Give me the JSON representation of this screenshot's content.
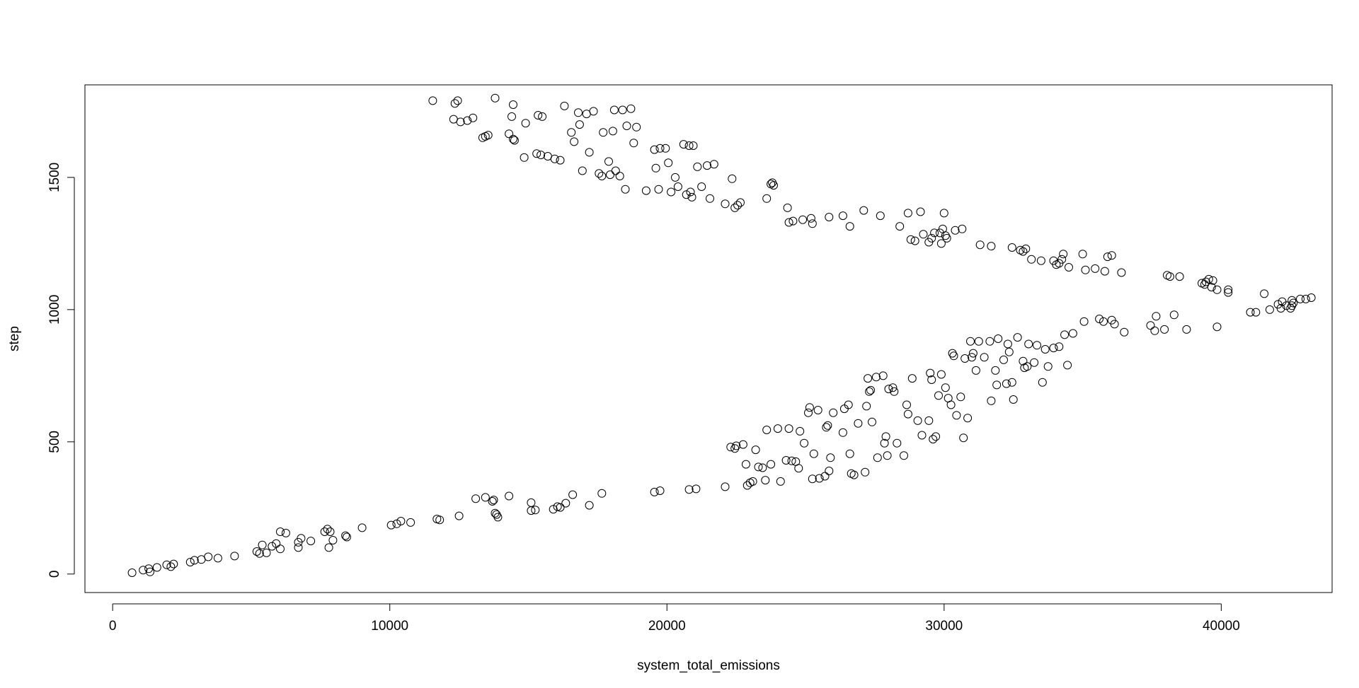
{
  "chart_data": {
    "type": "scatter",
    "title": "",
    "xlabel": "system_total_emissions",
    "ylabel": "step",
    "xlim": [
      -1000,
      44000
    ],
    "ylim": [
      -70,
      1850
    ],
    "x_ticks": [
      0,
      10000,
      20000,
      30000,
      40000
    ],
    "x_tick_labels": [
      "0",
      "10000",
      "20000",
      "30000",
      "40000"
    ],
    "y_ticks": [
      0,
      500,
      1000,
      1500
    ],
    "y_tick_labels": [
      "0",
      "500",
      "1000",
      "1500"
    ],
    "grid": false,
    "legend": "none",
    "marker": "open-circle",
    "points": [
      [
        700,
        5
      ],
      [
        1100,
        15
      ],
      [
        1300,
        20
      ],
      [
        1350,
        8
      ],
      [
        1600,
        25
      ],
      [
        1950,
        35
      ],
      [
        2100,
        28
      ],
      [
        2200,
        38
      ],
      [
        2800,
        45
      ],
      [
        2950,
        52
      ],
      [
        3200,
        55
      ],
      [
        3450,
        65
      ],
      [
        3800,
        60
      ],
      [
        4400,
        68
      ],
      [
        5200,
        85
      ],
      [
        5300,
        78
      ],
      [
        5400,
        110
      ],
      [
        5550,
        80
      ],
      [
        5750,
        105
      ],
      [
        5900,
        115
      ],
      [
        6050,
        95
      ],
      [
        6050,
        160
      ],
      [
        6250,
        155
      ],
      [
        6700,
        100
      ],
      [
        6700,
        120
      ],
      [
        6800,
        135
      ],
      [
        7150,
        125
      ],
      [
        7650,
        160
      ],
      [
        7750,
        170
      ],
      [
        7800,
        100
      ],
      [
        7850,
        160
      ],
      [
        7950,
        128
      ],
      [
        8400,
        145
      ],
      [
        8450,
        140
      ],
      [
        9000,
        175
      ],
      [
        10050,
        185
      ],
      [
        10250,
        190
      ],
      [
        10400,
        200
      ],
      [
        10750,
        195
      ],
      [
        11700,
        208
      ],
      [
        11800,
        205
      ],
      [
        12500,
        220
      ],
      [
        13100,
        285
      ],
      [
        13450,
        290
      ],
      [
        13700,
        275
      ],
      [
        13750,
        280
      ],
      [
        13800,
        230
      ],
      [
        13850,
        225
      ],
      [
        13900,
        215
      ],
      [
        14300,
        295
      ],
      [
        15100,
        270
      ],
      [
        15100,
        240
      ],
      [
        15250,
        242
      ],
      [
        15900,
        245
      ],
      [
        16050,
        255
      ],
      [
        16150,
        252
      ],
      [
        16350,
        268
      ],
      [
        16600,
        300
      ],
      [
        17200,
        260
      ],
      [
        17650,
        305
      ],
      [
        19550,
        310
      ],
      [
        19750,
        315
      ],
      [
        20800,
        320
      ],
      [
        21050,
        322
      ],
      [
        22100,
        330
      ],
      [
        22300,
        480
      ],
      [
        22450,
        475
      ],
      [
        22500,
        485
      ],
      [
        22750,
        490
      ],
      [
        22850,
        415
      ],
      [
        22900,
        335
      ],
      [
        23000,
        345
      ],
      [
        23100,
        350
      ],
      [
        23200,
        470
      ],
      [
        23300,
        405
      ],
      [
        23450,
        402
      ],
      [
        23550,
        355
      ],
      [
        23600,
        545
      ],
      [
        23750,
        415
      ],
      [
        24000,
        550
      ],
      [
        24100,
        350
      ],
      [
        24300,
        430
      ],
      [
        24400,
        550
      ],
      [
        24500,
        428
      ],
      [
        24650,
        425
      ],
      [
        24750,
        400
      ],
      [
        24800,
        540
      ],
      [
        24950,
        495
      ],
      [
        25100,
        610
      ],
      [
        25150,
        630
      ],
      [
        25250,
        360
      ],
      [
        25300,
        455
      ],
      [
        25450,
        620
      ],
      [
        25500,
        362
      ],
      [
        25700,
        370
      ],
      [
        25750,
        555
      ],
      [
        25800,
        562
      ],
      [
        25850,
        390
      ],
      [
        25900,
        440
      ],
      [
        26000,
        610
      ],
      [
        26350,
        535
      ],
      [
        26400,
        625
      ],
      [
        26550,
        640
      ],
      [
        26600,
        455
      ],
      [
        26650,
        380
      ],
      [
        26750,
        375
      ],
      [
        26900,
        570
      ],
      [
        27150,
        385
      ],
      [
        27200,
        635
      ],
      [
        27250,
        740
      ],
      [
        27300,
        690
      ],
      [
        27400,
        575
      ],
      [
        27350,
        695
      ],
      [
        27550,
        745
      ],
      [
        27600,
        440
      ],
      [
        27800,
        750
      ],
      [
        27850,
        495
      ],
      [
        27900,
        520
      ],
      [
        27950,
        448
      ],
      [
        28000,
        700
      ],
      [
        28150,
        705
      ],
      [
        28200,
        690
      ],
      [
        28300,
        495
      ],
      [
        28550,
        448
      ],
      [
        28650,
        640
      ],
      [
        28700,
        605
      ],
      [
        28850,
        740
      ],
      [
        29050,
        580
      ],
      [
        29200,
        525
      ],
      [
        29450,
        580
      ],
      [
        29500,
        760
      ],
      [
        29550,
        735
      ],
      [
        29600,
        510
      ],
      [
        29700,
        520
      ],
      [
        29800,
        675
      ],
      [
        29900,
        755
      ],
      [
        30050,
        705
      ],
      [
        30150,
        665
      ],
      [
        30250,
        640
      ],
      [
        30300,
        835
      ],
      [
        30350,
        825
      ],
      [
        30450,
        600
      ],
      [
        30600,
        670
      ],
      [
        30700,
        515
      ],
      [
        30750,
        815
      ],
      [
        30850,
        590
      ],
      [
        30950,
        880
      ],
      [
        31000,
        820
      ],
      [
        31050,
        835
      ],
      [
        31150,
        770
      ],
      [
        31250,
        880
      ],
      [
        31450,
        820
      ],
      [
        31650,
        880
      ],
      [
        31700,
        655
      ],
      [
        31850,
        770
      ],
      [
        31900,
        715
      ],
      [
        31950,
        890
      ],
      [
        32150,
        810
      ],
      [
        32250,
        720
      ],
      [
        32300,
        870
      ],
      [
        32350,
        840
      ],
      [
        32450,
        725
      ],
      [
        32500,
        660
      ],
      [
        32650,
        895
      ],
      [
        32850,
        805
      ],
      [
        32900,
        780
      ],
      [
        33000,
        785
      ],
      [
        33050,
        870
      ],
      [
        33250,
        800
      ],
      [
        33350,
        865
      ],
      [
        33550,
        725
      ],
      [
        33650,
        850
      ],
      [
        33750,
        785
      ],
      [
        33950,
        855
      ],
      [
        34150,
        860
      ],
      [
        34350,
        905
      ],
      [
        34450,
        790
      ],
      [
        34650,
        910
      ],
      [
        35050,
        955
      ],
      [
        35600,
        965
      ],
      [
        35750,
        955
      ],
      [
        36050,
        960
      ],
      [
        36150,
        945
      ],
      [
        36500,
        915
      ],
      [
        37450,
        940
      ],
      [
        37600,
        920
      ],
      [
        37650,
        975
      ],
      [
        37950,
        925
      ],
      [
        38300,
        980
      ],
      [
        38750,
        925
      ],
      [
        39850,
        935
      ],
      [
        41050,
        990
      ],
      [
        41250,
        990
      ],
      [
        41750,
        1000
      ],
      [
        42200,
        1030
      ],
      [
        42350,
        1015
      ],
      [
        42500,
        1005
      ],
      [
        42550,
        1035
      ],
      [
        42600,
        1025
      ],
      [
        42850,
        1040
      ],
      [
        43050,
        1040
      ],
      [
        43250,
        1045
      ],
      [
        11550,
        1790
      ],
      [
        12300,
        1720
      ],
      [
        12350,
        1780
      ],
      [
        12450,
        1790
      ],
      [
        12550,
        1710
      ],
      [
        12800,
        1715
      ],
      [
        13000,
        1725
      ],
      [
        13350,
        1650
      ],
      [
        13450,
        1655
      ],
      [
        13550,
        1660
      ],
      [
        13800,
        1800
      ],
      [
        14300,
        1665
      ],
      [
        14400,
        1730
      ],
      [
        14450,
        1645
      ],
      [
        14500,
        1640
      ],
      [
        14450,
        1775
      ],
      [
        14850,
        1575
      ],
      [
        14900,
        1705
      ],
      [
        15300,
        1590
      ],
      [
        15350,
        1735
      ],
      [
        15450,
        1585
      ],
      [
        15500,
        1730
      ],
      [
        15700,
        1580
      ],
      [
        15950,
        1570
      ],
      [
        16150,
        1565
      ],
      [
        16300,
        1770
      ],
      [
        16550,
        1670
      ],
      [
        16650,
        1635
      ],
      [
        16800,
        1745
      ],
      [
        16850,
        1700
      ],
      [
        16950,
        1525
      ],
      [
        17100,
        1740
      ],
      [
        17200,
        1595
      ],
      [
        17350,
        1750
      ],
      [
        17550,
        1515
      ],
      [
        17650,
        1505
      ],
      [
        17700,
        1670
      ],
      [
        17900,
        1560
      ],
      [
        17950,
        1510
      ],
      [
        18050,
        1675
      ],
      [
        18100,
        1755
      ],
      [
        18150,
        1525
      ],
      [
        18300,
        1505
      ],
      [
        18400,
        1755
      ],
      [
        18500,
        1455
      ],
      [
        18550,
        1695
      ],
      [
        18700,
        1760
      ],
      [
        18800,
        1630
      ],
      [
        18900,
        1690
      ],
      [
        19250,
        1450
      ],
      [
        19550,
        1605
      ],
      [
        19600,
        1535
      ],
      [
        19700,
        1455
      ],
      [
        19750,
        1610
      ],
      [
        19950,
        1610
      ],
      [
        20050,
        1555
      ],
      [
        20150,
        1445
      ],
      [
        20300,
        1500
      ],
      [
        20400,
        1465
      ],
      [
        20600,
        1625
      ],
      [
        20700,
        1435
      ],
      [
        20800,
        1620
      ],
      [
        20850,
        1445
      ],
      [
        20900,
        1425
      ],
      [
        20950,
        1620
      ],
      [
        21100,
        1540
      ],
      [
        21250,
        1465
      ],
      [
        21450,
        1545
      ],
      [
        21550,
        1420
      ],
      [
        21700,
        1550
      ],
      [
        22100,
        1400
      ],
      [
        22350,
        1495
      ],
      [
        22450,
        1385
      ],
      [
        22550,
        1395
      ],
      [
        22650,
        1405
      ],
      [
        23600,
        1420
      ],
      [
        23750,
        1475
      ],
      [
        23800,
        1480
      ],
      [
        23850,
        1470
      ],
      [
        24350,
        1385
      ],
      [
        24400,
        1330
      ],
      [
        24550,
        1335
      ],
      [
        24900,
        1340
      ],
      [
        25200,
        1345
      ],
      [
        25250,
        1325
      ],
      [
        25850,
        1350
      ],
      [
        26350,
        1355
      ],
      [
        26600,
        1315
      ],
      [
        27100,
        1375
      ],
      [
        27700,
        1355
      ],
      [
        28400,
        1315
      ],
      [
        28700,
        1365
      ],
      [
        28800,
        1265
      ],
      [
        28950,
        1260
      ],
      [
        29150,
        1370
      ],
      [
        29250,
        1285
      ],
      [
        29450,
        1255
      ],
      [
        29550,
        1270
      ],
      [
        29650,
        1290
      ],
      [
        29850,
        1290
      ],
      [
        29900,
        1250
      ],
      [
        29950,
        1305
      ],
      [
        30000,
        1365
      ],
      [
        30050,
        1280
      ],
      [
        30100,
        1270
      ],
      [
        30400,
        1300
      ],
      [
        30650,
        1305
      ],
      [
        31300,
        1245
      ],
      [
        31700,
        1240
      ],
      [
        32450,
        1235
      ],
      [
        32750,
        1225
      ],
      [
        32850,
        1220
      ],
      [
        32950,
        1230
      ],
      [
        33150,
        1190
      ],
      [
        33500,
        1185
      ],
      [
        33950,
        1185
      ],
      [
        34050,
        1170
      ],
      [
        34150,
        1175
      ],
      [
        34250,
        1190
      ],
      [
        34300,
        1210
      ],
      [
        34500,
        1160
      ],
      [
        35000,
        1210
      ],
      [
        35100,
        1150
      ],
      [
        35450,
        1155
      ],
      [
        35800,
        1145
      ],
      [
        35900,
        1200
      ],
      [
        36050,
        1205
      ],
      [
        36400,
        1140
      ],
      [
        38050,
        1130
      ],
      [
        38150,
        1125
      ],
      [
        38500,
        1125
      ],
      [
        39300,
        1100
      ],
      [
        39400,
        1095
      ],
      [
        39450,
        1105
      ],
      [
        39550,
        1115
      ],
      [
        39650,
        1085
      ],
      [
        39700,
        1110
      ],
      [
        39850,
        1075
      ],
      [
        40250,
        1075
      ],
      [
        40250,
        1065
      ],
      [
        41550,
        1060
      ],
      [
        42050,
        1020
      ],
      [
        42150,
        1005
      ],
      [
        42550,
        1015
      ]
    ]
  }
}
